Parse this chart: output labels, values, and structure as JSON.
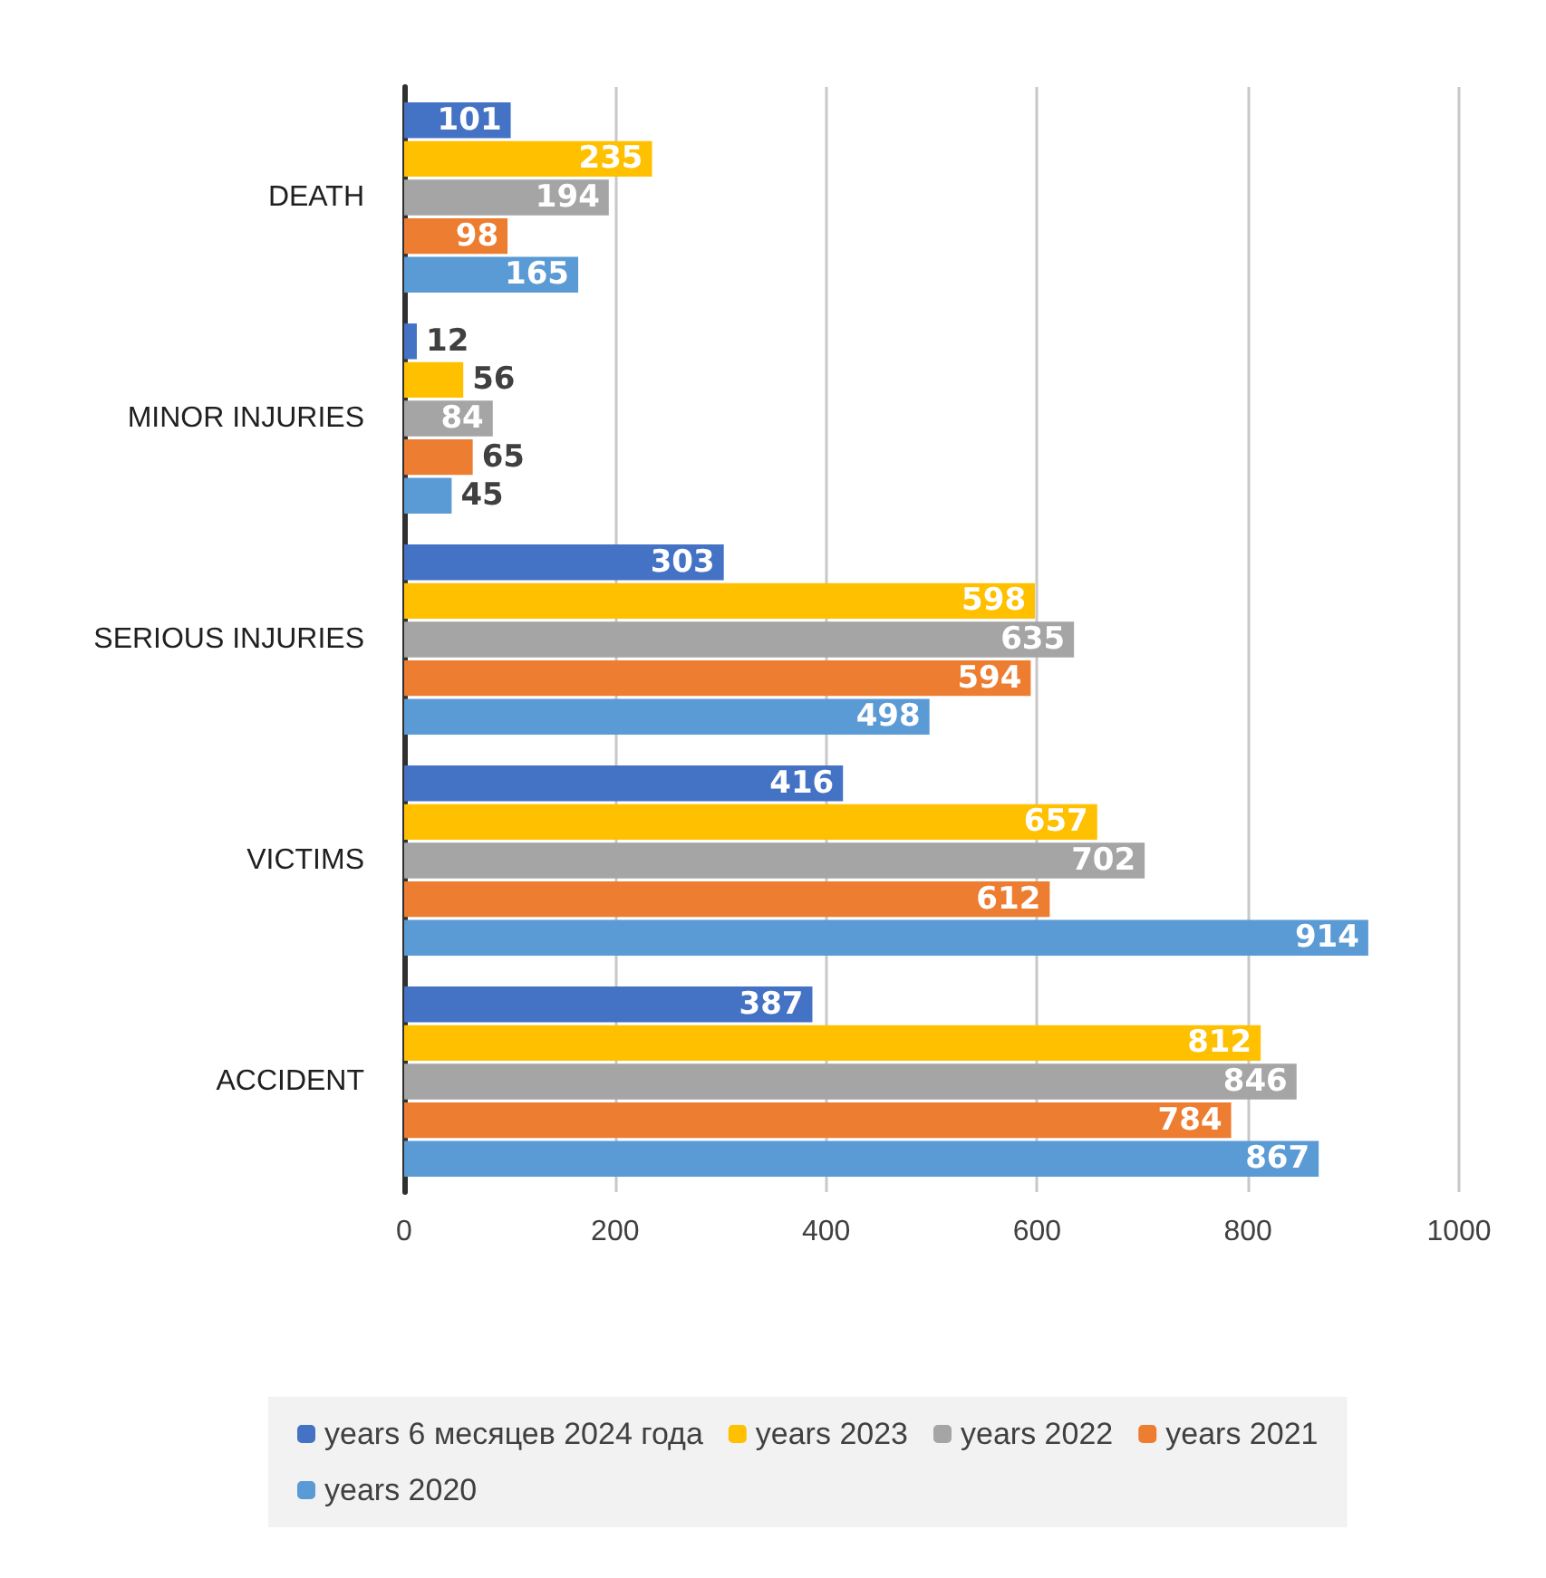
{
  "chart_data": {
    "type": "bar",
    "orientation": "horizontal",
    "categories": [
      "DEATH",
      "MINOR INJURIES",
      "SERIOUS INJURIES",
      "VICTIMS",
      "ACCIDENT"
    ],
    "series": [
      {
        "name": "years 6 месяцев 2024 года",
        "color": "#4472c4",
        "values": [
          101,
          12,
          303,
          416,
          387
        ]
      },
      {
        "name": "years 2023",
        "color": "#ffc000",
        "values": [
          235,
          56,
          598,
          657,
          812
        ]
      },
      {
        "name": "years 2022",
        "color": "#a5a5a5",
        "values": [
          194,
          84,
          635,
          702,
          846
        ]
      },
      {
        "name": "years 2021",
        "color": "#ed7d31",
        "values": [
          98,
          65,
          594,
          612,
          784
        ]
      },
      {
        "name": "years 2020",
        "color": "#5b9bd5",
        "values": [
          165,
          45,
          498,
          914,
          867
        ]
      }
    ],
    "xlim": [
      0,
      1000
    ],
    "xticks": [
      0,
      200,
      400,
      600,
      800,
      1000
    ],
    "grid": "x",
    "legend": "bottom",
    "data_labels": true
  }
}
